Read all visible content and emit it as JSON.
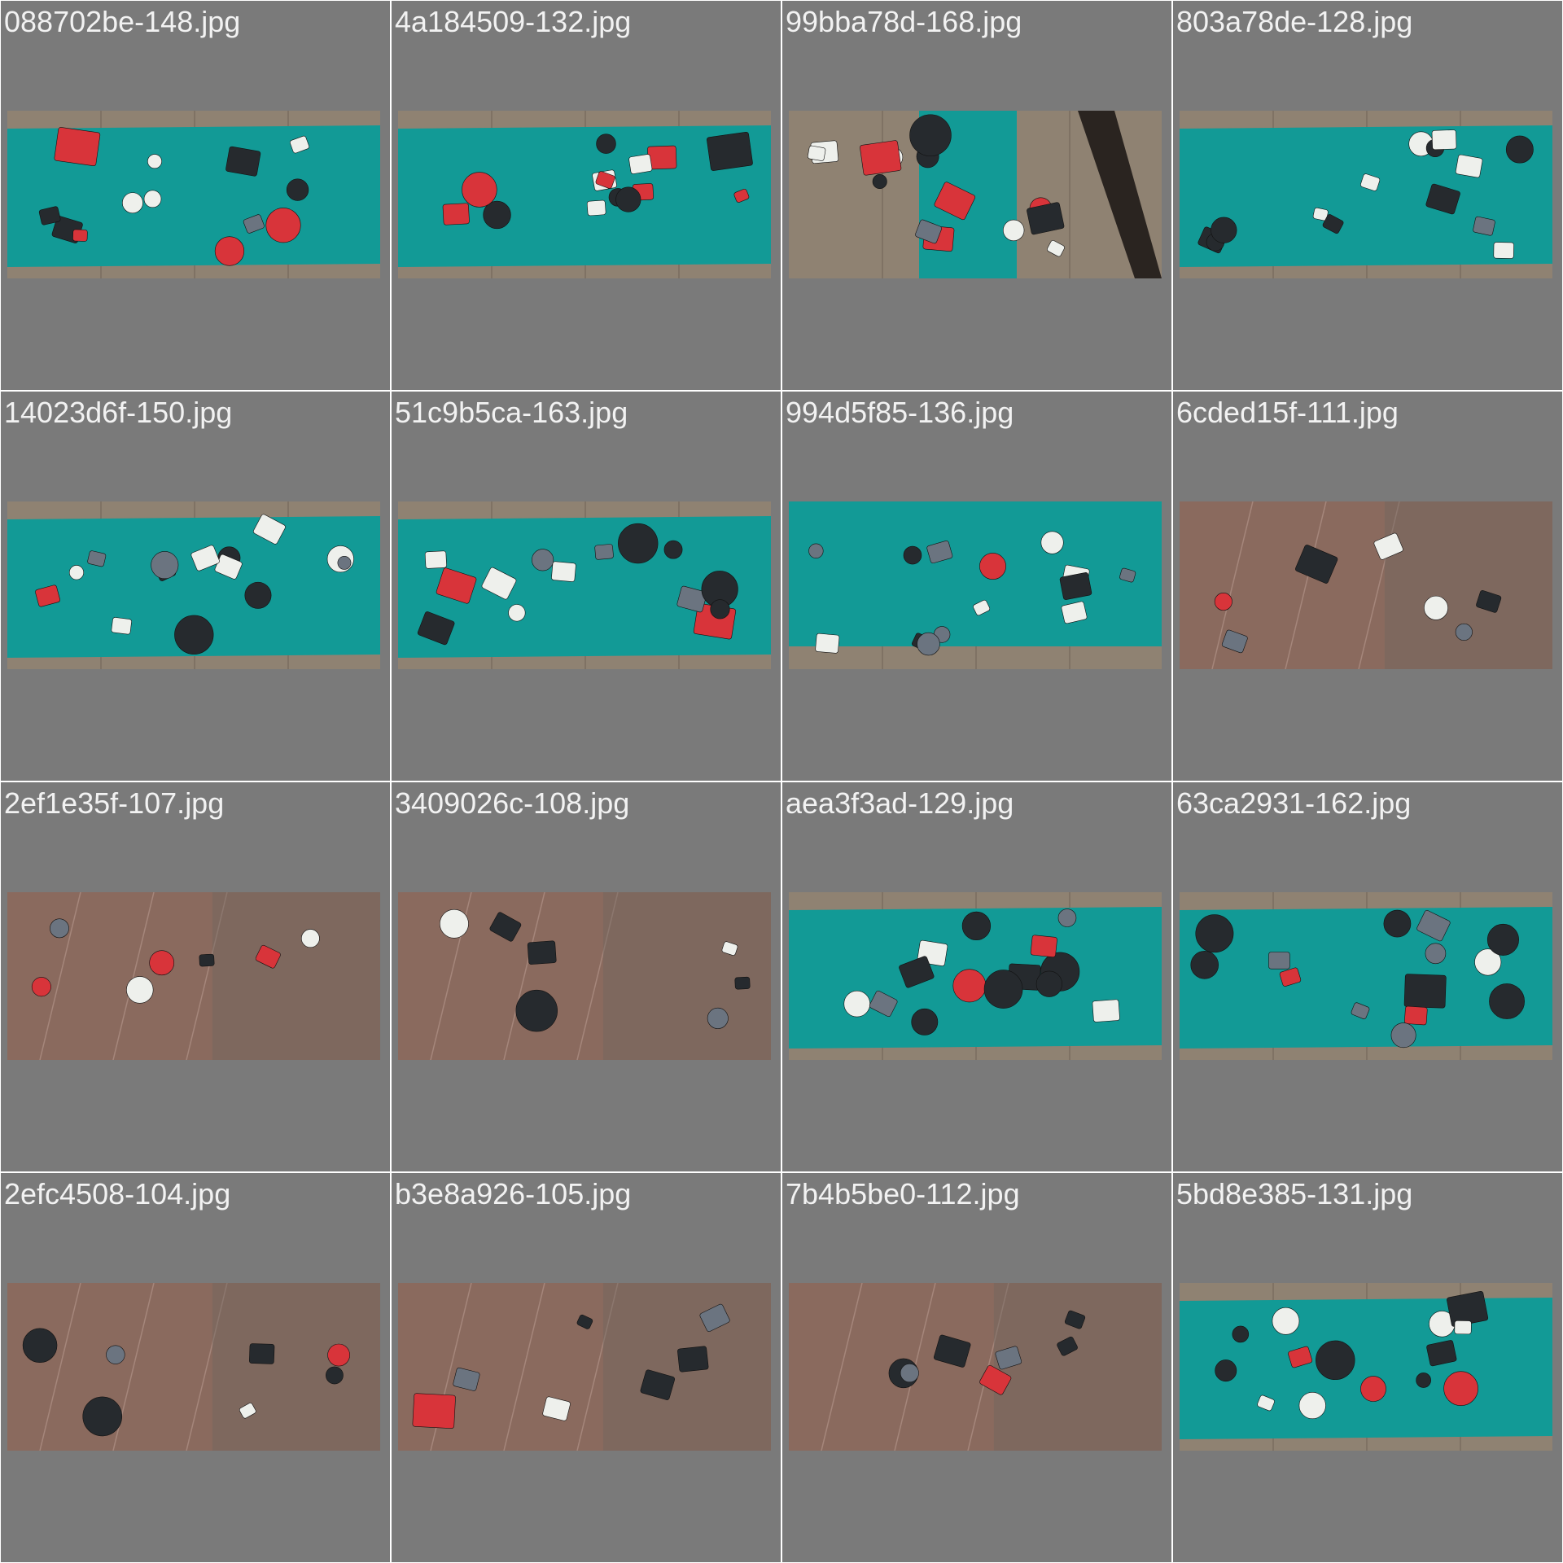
{
  "gallery": {
    "tiles": [
      {
        "filename": "088702be-148.jpg",
        "scene": "mat"
      },
      {
        "filename": "4a184509-132.jpg",
        "scene": "mat"
      },
      {
        "filename": "99bba78d-168.jpg",
        "scene": "mat-narrow"
      },
      {
        "filename": "803a78de-128.jpg",
        "scene": "mat"
      },
      {
        "filename": "14023d6f-150.jpg",
        "scene": "mat"
      },
      {
        "filename": "51c9b5ca-163.jpg",
        "scene": "mat"
      },
      {
        "filename": "994d5f85-136.jpg",
        "scene": "mat-full"
      },
      {
        "filename": "6cded15f-111.jpg",
        "scene": "floor"
      },
      {
        "filename": "2ef1e35f-107.jpg",
        "scene": "floor"
      },
      {
        "filename": "3409026c-108.jpg",
        "scene": "floor"
      },
      {
        "filename": "aea3f3ad-129.jpg",
        "scene": "mat"
      },
      {
        "filename": "63ca2931-162.jpg",
        "scene": "mat"
      },
      {
        "filename": "2efc4508-104.jpg",
        "scene": "floor"
      },
      {
        "filename": "b3e8a926-105.jpg",
        "scene": "floor"
      },
      {
        "filename": "7b4b5be0-112.jpg",
        "scene": "floor"
      },
      {
        "filename": "5bd8e385-131.jpg",
        "scene": "mat"
      }
    ]
  },
  "colors": {
    "panel": "#7a7a7a",
    "label_text": "#f2f2f2",
    "mat": "#129a96",
    "wood": "#8f8272",
    "floor": "#8a6a5e",
    "part_red": "#d8343a",
    "part_black": "#262a2e",
    "part_white": "#eef0ec",
    "part_gray": "#6b7480"
  }
}
